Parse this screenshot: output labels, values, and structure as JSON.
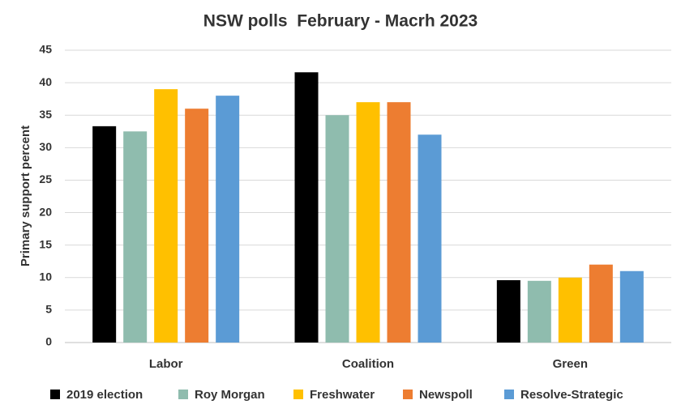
{
  "chart_data": {
    "type": "bar",
    "title": "NSW polls  February - Macrh 2023",
    "y_label": "Primary support percent",
    "categories": [
      "Labor",
      "Coalition",
      "Green"
    ],
    "series": [
      {
        "name": "2019 election",
        "color": "#000000",
        "values": [
          33.3,
          41.6,
          9.6
        ]
      },
      {
        "name": "Roy Morgan",
        "color": "#8fbcae",
        "values": [
          32.5,
          35,
          9.5
        ]
      },
      {
        "name": "Freshwater",
        "color": "#ffc000",
        "values": [
          39,
          37,
          10
        ]
      },
      {
        "name": "Newspoll",
        "color": "#ed7d31",
        "values": [
          36,
          37,
          12
        ]
      },
      {
        "name": "Resolve-Strategic",
        "color": "#5b9bd5",
        "values": [
          38,
          32,
          11
        ]
      }
    ],
    "ylim": [
      0,
      45
    ],
    "yticks": [
      0,
      5,
      10,
      15,
      20,
      25,
      30,
      35,
      40,
      45
    ],
    "grid": true,
    "legend": "bottom"
  }
}
